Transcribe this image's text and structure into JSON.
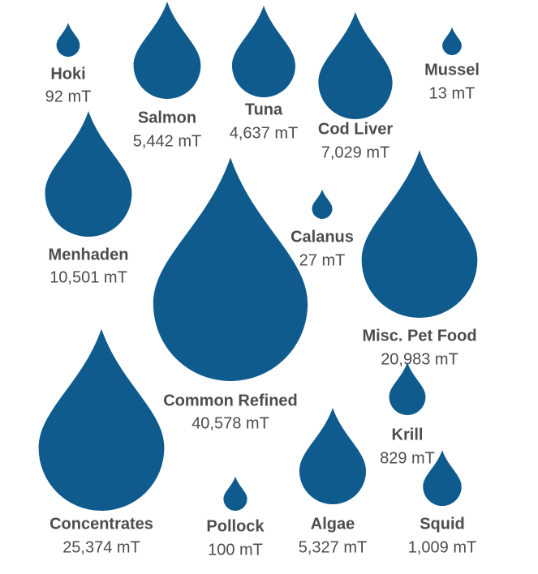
{
  "chart_data": {
    "type": "drop",
    "categories": [
      "Hoki",
      "Salmon",
      "Tuna",
      "Cod Liver",
      "Mussel",
      "Menhaden",
      "Common Refined",
      "Calanus",
      "Misc. Pet Food",
      "Concentrates",
      "Pollock",
      "Algae",
      "Krill",
      "Squid"
    ],
    "values": [
      92,
      5442,
      4637,
      7029,
      13,
      10501,
      40578,
      27,
      20983,
      25374,
      100,
      5327,
      829,
      1009
    ],
    "value_labels": [
      "92 mT",
      "5,442 mT",
      "4,637 mT",
      "7,029 mT",
      "13 mT",
      "10,501 mT",
      "40,578 mT",
      "27 mT",
      "20,983 mT",
      "25,374 mT",
      "100 mT",
      "5,327 mT",
      "829 mT",
      "1,009 mT"
    ],
    "color": "#0f5b8e"
  }
}
